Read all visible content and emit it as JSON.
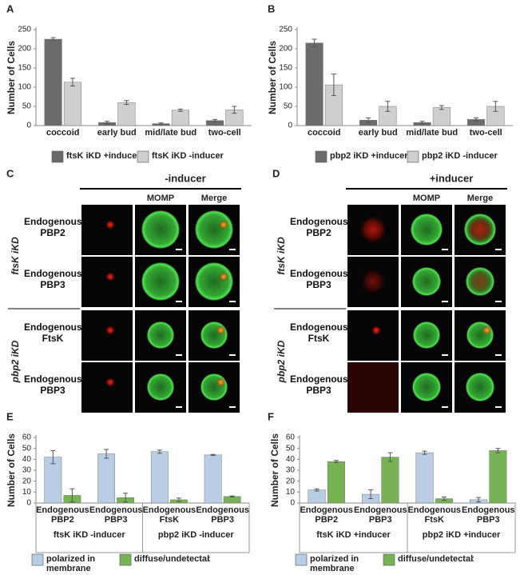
{
  "chart_data": [
    {
      "type": "bar",
      "panel": "A",
      "ylabel": "Number of Cells",
      "categories": [
        "coccoid",
        "early bud",
        "mid/late bud",
        "two-cell"
      ],
      "series": [
        {
          "name": "ftsK iKD +inducer",
          "color": "#6b6b6b",
          "values": [
            225,
            8,
            5,
            13
          ],
          "errors": [
            4,
            3,
            2,
            3
          ]
        },
        {
          "name": "ftsK iKD -inducer",
          "color": "#cfcfcf",
          "values": [
            113,
            60,
            40,
            41
          ],
          "errors": [
            10,
            5,
            3,
            9
          ]
        }
      ],
      "ylim": [
        0,
        250
      ],
      "yticks": [
        0,
        50,
        100,
        150,
        200,
        250
      ],
      "grid": false
    },
    {
      "type": "bar",
      "panel": "B",
      "ylabel": "Number of Cells",
      "categories": [
        "coccoid",
        "early bud",
        "mid/late bud",
        "two-cell"
      ],
      "series": [
        {
          "name": "pbp2 iKD +inducer",
          "color": "#6b6b6b",
          "values": [
            215,
            14,
            8,
            16
          ],
          "errors": [
            10,
            6,
            3,
            4
          ]
        },
        {
          "name": "pbp2 iKD -inducer",
          "color": "#cfcfcf",
          "values": [
            106,
            50,
            47,
            50
          ],
          "errors": [
            28,
            13,
            5,
            13
          ]
        }
      ],
      "ylim": [
        0,
        250
      ],
      "yticks": [
        0,
        50,
        100,
        150,
        200,
        250
      ],
      "grid": false
    },
    {
      "type": "bar",
      "panel": "E",
      "ylabel": "Number of Cells",
      "groups": [
        {
          "name": "ftsK iKD -inducer",
          "categories": [
            "Endogenous PBP2",
            "Endogenous PBP3"
          ]
        },
        {
          "name": "pbp2 iKD -inducer",
          "categories": [
            "Endogenous FtsK",
            "Endogenous PBP3"
          ]
        }
      ],
      "series": [
        {
          "name": "polarized in membrane",
          "color": "#b9cde5",
          "values": [
            42,
            45,
            47,
            44
          ],
          "errors": [
            6,
            4,
            1.5,
            0.5
          ]
        },
        {
          "name": "diffuse/undetectable",
          "color": "#77b255",
          "values": [
            7,
            5,
            3,
            6
          ],
          "errors": [
            6,
            4,
            1.5,
            0.5
          ]
        }
      ],
      "ylim": [
        0,
        60
      ],
      "yticks": [
        0,
        10,
        20,
        30,
        40,
        50,
        60
      ],
      "grid": false
    },
    {
      "type": "bar",
      "panel": "F",
      "ylabel": "Number of Cells",
      "groups": [
        {
          "name": "ftsK iKD +inducer",
          "categories": [
            "Endogenous PBP2",
            "Endogenous PBP3"
          ]
        },
        {
          "name": "pbp2 iKD +inducer",
          "categories": [
            "Endogenous FtsK",
            "Endogenous PBP3"
          ]
        }
      ],
      "series": [
        {
          "name": "polarized in membrane",
          "color": "#b9cde5",
          "values": [
            12,
            8,
            46,
            3
          ],
          "errors": [
            1,
            4,
            1.5,
            2
          ]
        },
        {
          "name": "diffuse/undetectable",
          "color": "#77b255",
          "values": [
            38,
            42,
            4,
            48
          ],
          "errors": [
            1,
            4,
            1.5,
            2
          ]
        }
      ],
      "ylim": [
        0,
        60
      ],
      "yticks": [
        0,
        10,
        20,
        30,
        40,
        50,
        60
      ],
      "grid": false
    }
  ],
  "image_panels": [
    {
      "panel": "C",
      "condition": "-inducer",
      "columns": [
        "MOMP",
        "Merge"
      ],
      "groups": [
        {
          "name": "ftsK iKD",
          "rows": [
            "Endogenous PBP2",
            "Endogenous PBP3"
          ]
        },
        {
          "name": "pbp2 iKD",
          "rows": [
            "Endogenous FtsK",
            "Endogenous PBP3"
          ]
        }
      ]
    },
    {
      "panel": "D",
      "condition": "+inducer",
      "columns": [
        "MOMP",
        "Merge"
      ],
      "groups": [
        {
          "name": "ftsK iKD",
          "rows": [
            "Endogenous PBP2",
            "Endogenous PBP3"
          ]
        },
        {
          "name": "pbp2 iKD",
          "rows": [
            "Endogenous FtsK",
            "Endogenous PBP3"
          ]
        }
      ]
    }
  ]
}
